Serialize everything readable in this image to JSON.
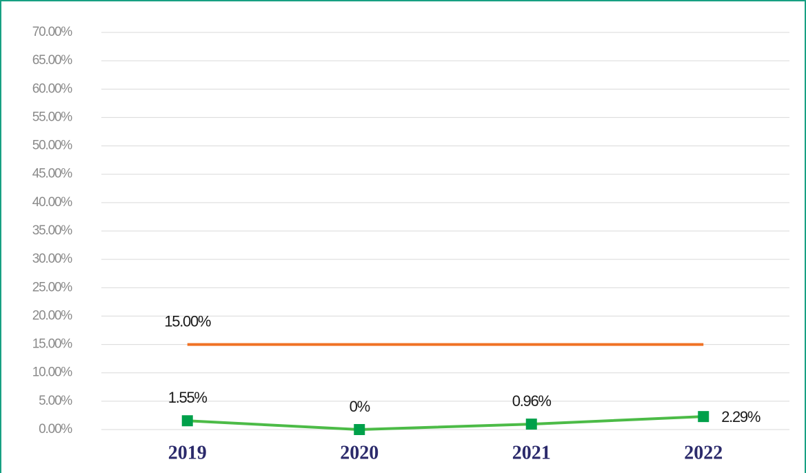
{
  "chart_data": {
    "type": "line",
    "categories": [
      "2019",
      "2020",
      "2021",
      "2022"
    ],
    "series": [
      {
        "color": "#f07225",
        "values": [
          15,
          15,
          15,
          15
        ],
        "value_labels": [
          "15.00%",
          null,
          null,
          null
        ]
      },
      {
        "color": "#4cbb47",
        "marker_color": "#00a04a",
        "values": [
          1.55,
          0,
          0.96,
          2.29
        ],
        "value_labels": [
          "1.55%",
          "0%",
          "0.96%",
          "2.29%"
        ]
      }
    ],
    "ylim": [
      0,
      70
    ],
    "yticks": [
      {
        "value": 0,
        "label": "0.00%"
      },
      {
        "value": 5,
        "label": "5.00%"
      },
      {
        "value": 10,
        "label": "10.00%"
      },
      {
        "value": 15,
        "label": "15.00%"
      },
      {
        "value": 20,
        "label": "20.00%"
      },
      {
        "value": 25,
        "label": "25.00%"
      },
      {
        "value": 30,
        "label": "30.00%"
      },
      {
        "value": 35,
        "label": "35.00%"
      },
      {
        "value": 40,
        "label": "40.00%"
      },
      {
        "value": 45,
        "label": "45.00%"
      },
      {
        "value": 50,
        "label": "50.00%"
      },
      {
        "value": 55,
        "label": "55.00%"
      },
      {
        "value": 60,
        "label": "60.00%"
      },
      {
        "value": 65,
        "label": "65.00%"
      },
      {
        "value": 70,
        "label": "70.00%"
      }
    ],
    "grid": true
  }
}
